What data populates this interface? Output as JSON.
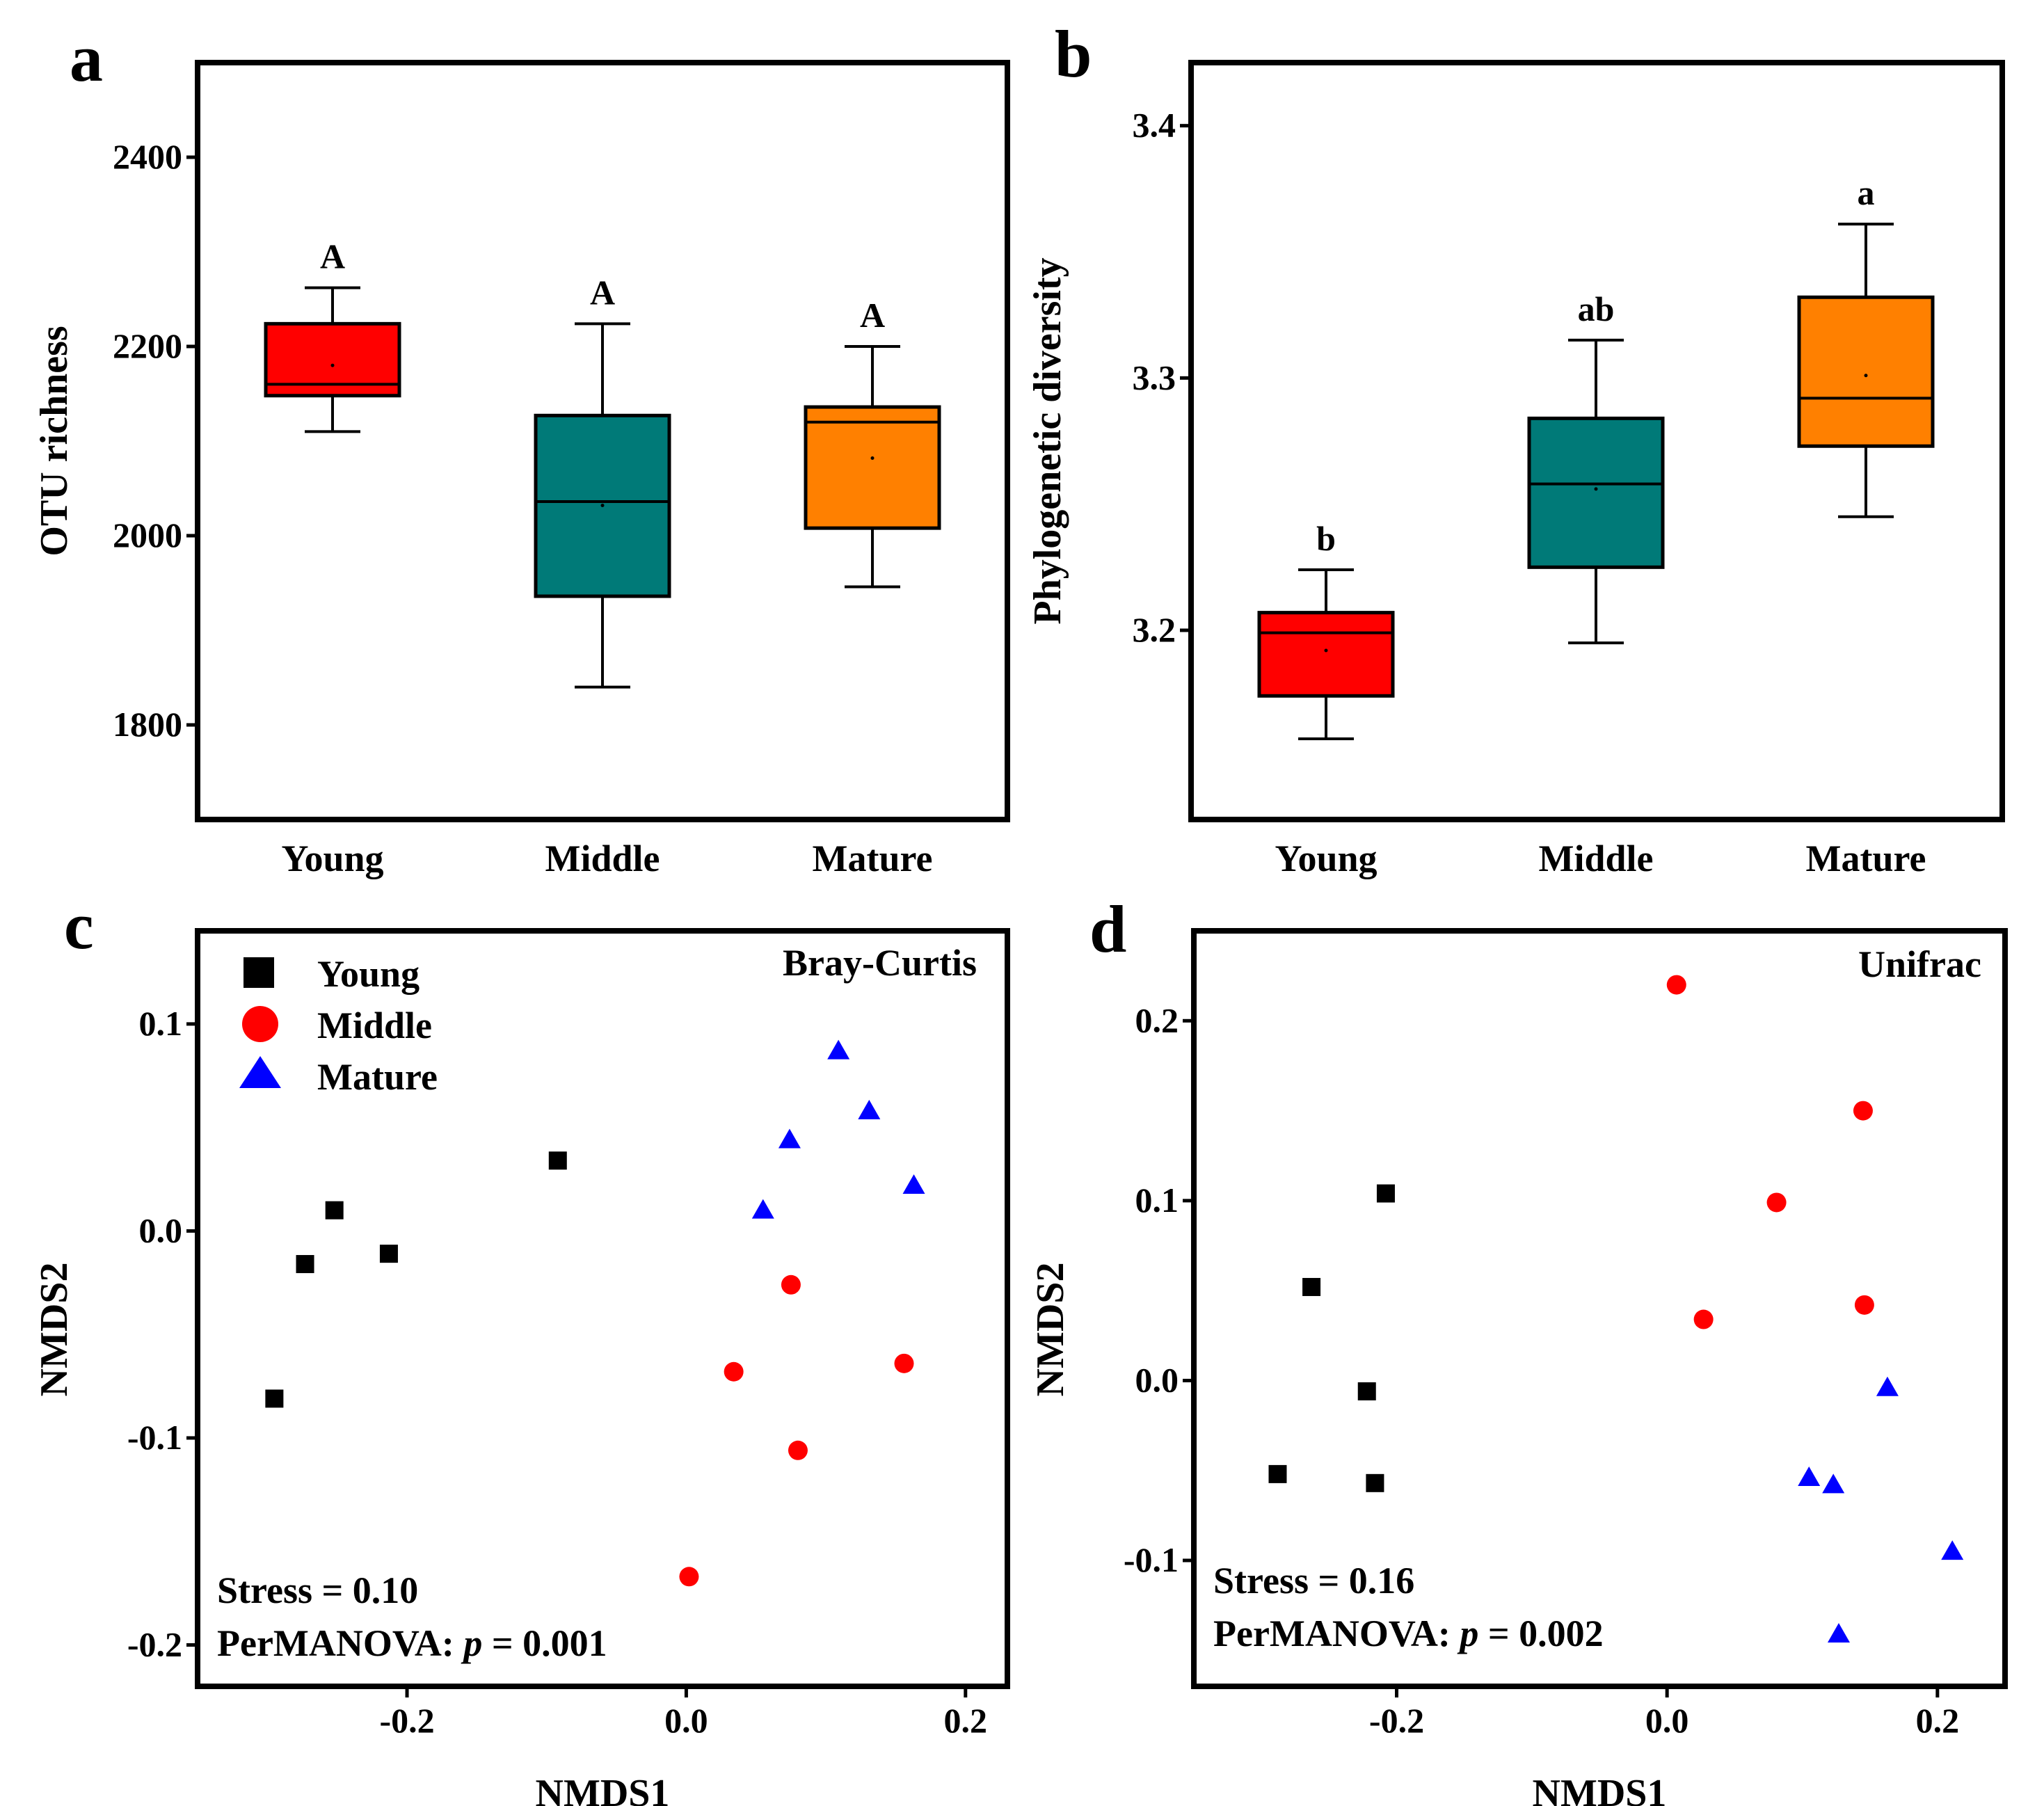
{
  "chart_data": [
    {
      "panel": "a",
      "type": "box",
      "ylabel": "OTU richness",
      "xlabel": "",
      "ylim": [
        1700,
        2500
      ],
      "yticks": [
        1800,
        2000,
        2200,
        2400
      ],
      "categories": [
        "Young",
        "Middle",
        "Mature"
      ],
      "boxes": [
        {
          "group": "Young",
          "min": 2110,
          "q1": 2148,
          "median": 2160,
          "q3": 2224,
          "max": 2262,
          "mean": 2180,
          "color": "#ff0000",
          "letter": "A"
        },
        {
          "group": "Middle",
          "min": 1840,
          "q1": 1936,
          "median": 2036,
          "q3": 2127,
          "max": 2224,
          "mean": 2032,
          "color": "#007a78",
          "letter": "A"
        },
        {
          "group": "Mature",
          "min": 1946,
          "q1": 2008,
          "median": 2120,
          "q3": 2136,
          "max": 2200,
          "mean": 2082,
          "color": "#ff8000",
          "letter": "A"
        }
      ]
    },
    {
      "panel": "b",
      "type": "box",
      "ylabel": "Phylogenetic diversity",
      "xlabel": "",
      "ylim": [
        3.125,
        3.425
      ],
      "yticks": [
        3.2,
        3.3,
        3.4
      ],
      "categories": [
        "Young",
        "Middle",
        "Mature"
      ],
      "boxes": [
        {
          "group": "Young",
          "min": 3.157,
          "q1": 3.174,
          "median": 3.199,
          "q3": 3.207,
          "max": 3.224,
          "mean": 3.192,
          "color": "#ff0000",
          "letter": "b"
        },
        {
          "group": "Middle",
          "min": 3.195,
          "q1": 3.225,
          "median": 3.258,
          "q3": 3.284,
          "max": 3.315,
          "mean": 3.256,
          "color": "#007a78",
          "letter": "ab"
        },
        {
          "group": "Mature",
          "min": 3.245,
          "q1": 3.273,
          "median": 3.292,
          "q3": 3.332,
          "max": 3.361,
          "mean": 3.301,
          "color": "#ff8000",
          "letter": "a"
        }
      ]
    },
    {
      "panel": "c",
      "type": "scatter",
      "title": "Bray-Curtis",
      "xlabel": "NMDS1",
      "ylabel": "NMDS2",
      "xlim": [
        -0.35,
        0.23
      ],
      "ylim": [
        -0.22,
        0.145
      ],
      "xticks": [
        -0.2,
        0.0,
        0.2
      ],
      "yticks": [
        -0.2,
        -0.1,
        0.0,
        0.1
      ],
      "legend_position": "top-left",
      "series": [
        {
          "name": "Young",
          "marker": "square",
          "color": "#000000",
          "points": [
            [
              -0.092,
              0.034
            ],
            [
              -0.252,
              0.01
            ],
            [
              -0.273,
              -0.016
            ],
            [
              -0.213,
              -0.011
            ],
            [
              -0.295,
              -0.081
            ]
          ]
        },
        {
          "name": "Middle",
          "marker": "circle",
          "color": "#ff0000",
          "points": [
            [
              0.075,
              -0.026
            ],
            [
              0.034,
              -0.068
            ],
            [
              0.156,
              -0.064
            ],
            [
              0.08,
              -0.106
            ],
            [
              0.002,
              -0.167
            ]
          ]
        },
        {
          "name": "Mature",
          "marker": "triangle",
          "color": "#0000ff",
          "points": [
            [
              0.109,
              0.087
            ],
            [
              0.131,
              0.058
            ],
            [
              0.074,
              0.044
            ],
            [
              0.163,
              0.022
            ],
            [
              0.055,
              0.01
            ]
          ]
        }
      ],
      "annotations": {
        "stress": "Stress = 0.10",
        "permanova_label": "PerMANOVA: ",
        "p_symbol": "p",
        "p_value": " = 0.001"
      }
    },
    {
      "panel": "d",
      "type": "scatter",
      "title": "Unifrac",
      "xlabel": "NMDS1",
      "ylabel": "NMDS2",
      "xlim": [
        -0.35,
        0.25
      ],
      "ylim": [
        -0.17,
        0.25
      ],
      "xticks": [
        -0.2,
        0.0,
        0.2
      ],
      "yticks": [
        -0.1,
        0.0,
        0.1,
        0.2
      ],
      "series": [
        {
          "name": "Young",
          "marker": "square",
          "color": "#000000",
          "points": [
            [
              -0.208,
              0.104
            ],
            [
              -0.263,
              0.052
            ],
            [
              -0.222,
              -0.006
            ],
            [
              -0.288,
              -0.052
            ],
            [
              -0.216,
              -0.057
            ]
          ]
        },
        {
          "name": "Middle",
          "marker": "circle",
          "color": "#ff0000",
          "points": [
            [
              0.007,
              0.22
            ],
            [
              0.145,
              0.15
            ],
            [
              0.081,
              0.099
            ],
            [
              0.027,
              0.034
            ],
            [
              0.146,
              0.042
            ]
          ]
        },
        {
          "name": "Mature",
          "marker": "triangle",
          "color": "#0000ff",
          "points": [
            [
              0.163,
              -0.004
            ],
            [
              0.105,
              -0.054
            ],
            [
              0.123,
              -0.058
            ],
            [
              0.211,
              -0.095
            ],
            [
              0.127,
              -0.141
            ]
          ]
        }
      ],
      "annotations": {
        "stress": "Stress = 0.16",
        "permanova_label": "PerMANOVA: ",
        "p_symbol": "p",
        "p_value": " = 0.002"
      }
    }
  ],
  "panel_labels": [
    "a",
    "b",
    "c",
    "d"
  ],
  "legend": [
    {
      "label": "Young",
      "marker": "square",
      "color": "#000000"
    },
    {
      "label": "Middle",
      "marker": "circle",
      "color": "#ff0000"
    },
    {
      "label": "Mature",
      "marker": "triangle",
      "color": "#0000ff"
    }
  ]
}
